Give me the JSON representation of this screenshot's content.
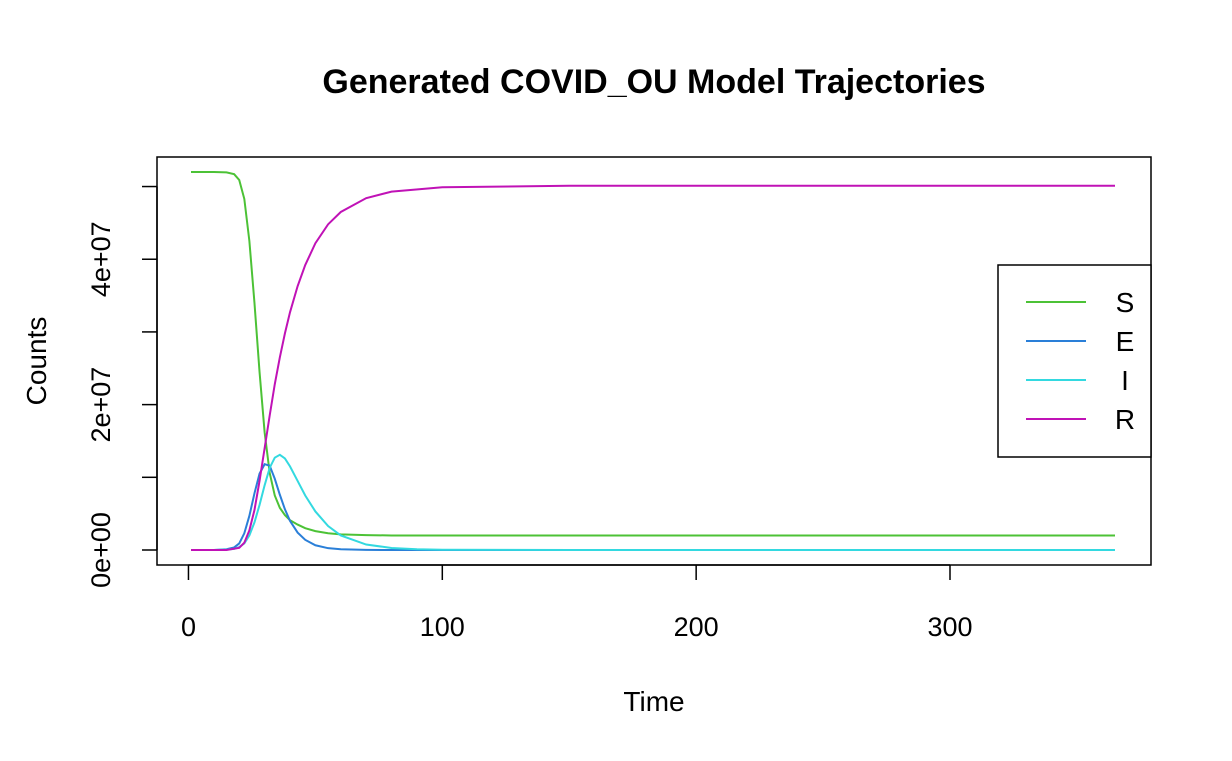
{
  "chart_data": {
    "type": "line",
    "title": "Generated COVID_OU Model Trajectories",
    "xlabel": "Time",
    "ylabel": "Counts",
    "xlim": [
      1,
      365
    ],
    "ylim": [
      0,
      52000000
    ],
    "x_ticks": [
      0,
      100,
      200,
      300
    ],
    "x_tick_labels": [
      "0",
      "100",
      "200",
      "300"
    ],
    "y_ticks": [
      0,
      10000000,
      20000000,
      30000000,
      40000000,
      50000000
    ],
    "y_tick_labels": [
      "0e+00",
      "",
      "2e+07",
      "",
      "4e+07",
      ""
    ],
    "legend_position": "right",
    "grid": false,
    "series": [
      {
        "name": "S",
        "color": "#4cc236",
        "x": [
          1,
          10,
          15,
          18,
          20,
          22,
          24,
          26,
          28,
          30,
          32,
          34,
          36,
          38,
          40,
          43,
          46,
          50,
          55,
          60,
          70,
          80,
          100,
          150,
          200,
          300,
          365
        ],
        "y": [
          52000000,
          52000000,
          51950000,
          51700000,
          50900000,
          48300000,
          42500000,
          34000000,
          24500000,
          16200000,
          10600000,
          7500000,
          5800000,
          4800000,
          4100000,
          3500000,
          3000000,
          2600000,
          2300000,
          2150000,
          2050000,
          2000000,
          2000000,
          2000000,
          2000000,
          2000000,
          2000000
        ]
      },
      {
        "name": "E",
        "color": "#2a7fd8",
        "x": [
          1,
          10,
          15,
          18,
          20,
          22,
          24,
          26,
          28,
          30,
          32,
          34,
          36,
          38,
          40,
          43,
          46,
          50,
          55,
          60,
          70,
          80,
          100,
          150,
          200,
          300,
          365
        ],
        "y": [
          0,
          0,
          100000,
          350000,
          900000,
          2300000,
          4700000,
          7800000,
          10500000,
          11800000,
          11600000,
          9800000,
          7600000,
          5600000,
          4000000,
          2400000,
          1400000,
          650000,
          250000,
          100000,
          20000,
          0,
          0,
          0,
          0,
          0,
          0
        ]
      },
      {
        "name": "I",
        "color": "#33d9e0",
        "x": [
          1,
          10,
          15,
          18,
          20,
          22,
          24,
          26,
          28,
          30,
          32,
          34,
          36,
          38,
          40,
          43,
          46,
          50,
          55,
          60,
          70,
          80,
          90,
          100,
          150,
          200,
          300,
          365
        ],
        "y": [
          0,
          0,
          50000,
          150000,
          400000,
          900000,
          2000000,
          3800000,
          6200000,
          8900000,
          11300000,
          12700000,
          13100000,
          12600000,
          11500000,
          9500000,
          7500000,
          5300000,
          3300000,
          2000000,
          750000,
          280000,
          100000,
          40000,
          0,
          0,
          0,
          0
        ]
      },
      {
        "name": "R",
        "color": "#c012b6",
        "x": [
          1,
          15,
          20,
          22,
          24,
          26,
          28,
          30,
          32,
          34,
          36,
          38,
          40,
          43,
          46,
          50,
          55,
          60,
          70,
          80,
          100,
          150,
          200,
          300,
          365
        ],
        "y": [
          0,
          0,
          300000,
          1000000,
          2700000,
          5500000,
          9500000,
          14000000,
          18500000,
          22800000,
          26500000,
          29800000,
          32700000,
          36300000,
          39200000,
          42200000,
          44800000,
          46500000,
          48400000,
          49300000,
          49900000,
          50100000,
          50100000,
          50100000,
          50100000
        ]
      }
    ]
  }
}
